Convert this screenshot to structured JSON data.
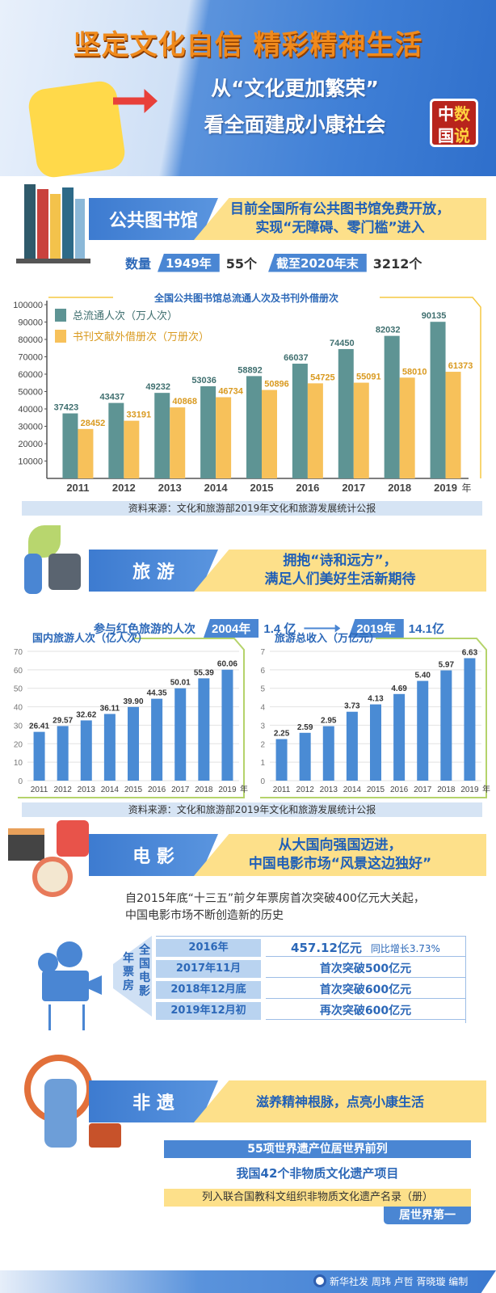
{
  "header": {
    "title": "坚定文化自信 精彩精神生活",
    "subtitle_line1": "从“文化更加繁荣”",
    "subtitle_line2": "看全面建成小康社会",
    "seal": [
      "中",
      "数",
      "国",
      "说"
    ]
  },
  "library": {
    "label": "公共图书馆",
    "headline1": "目前全国所有公共图书馆免费开放，",
    "headline2": "实现“无障碍、零门槛”进入",
    "stats": {
      "label": "数量",
      "year1": "1949年",
      "value1": "55个",
      "year2": "截至2020年末",
      "value2": "3212个"
    },
    "source": "资料来源：文化和旅游部2019年文化和旅游发展统计公报"
  },
  "tourism": {
    "label": "旅 游",
    "headline1": "拥抱“诗和远方”，",
    "headline2": "满足人们美好生活新期待",
    "red": {
      "label": "参与红色旅游的人次",
      "year1": "2004年",
      "value1": "1.4 亿",
      "year2": "2019年",
      "value2": "14.1亿"
    },
    "source": "资料来源：文化和旅游部2019年文化和旅游发展统计公报"
  },
  "movie": {
    "label": "电 影",
    "headline1": "从大国向强国迈进，",
    "headline2": "中国电影市场“风景这边独好”",
    "intro1": "自2015年底“十三五”前夕年票房首次突破400亿元大关起，",
    "intro2": "中国电影市场不断创造新的历史",
    "side_label1": "全国电影",
    "side_label2": "年票房",
    "rows": [
      {
        "date": "2016年",
        "value": "457.12亿元",
        "note": "同比增长3.73%"
      },
      {
        "date": "2017年11月",
        "value": "首次突破500亿元",
        "note": ""
      },
      {
        "date": "2018年12月底",
        "value": "首次突破600亿元",
        "note": ""
      },
      {
        "date": "2019年12月初",
        "value": "再次突破600亿元",
        "note": ""
      }
    ]
  },
  "heritage": {
    "label": "非 遗",
    "headline": "滋养精神根脉，点亮小康生活",
    "line1": "55项世界遗产位居世界前列",
    "line2": "我国42个非物质文化遗产项目",
    "line3": "列入联合国教科文组织非物质文化遗产名录（册）",
    "line4": "居世界第一"
  },
  "footer": {
    "credit": "新华社发 周玮 卢哲 胥晓璇 编制"
  },
  "colors": {
    "blue": "#4a86d3",
    "teal": "#5e9494",
    "yellow": "#f7c15a",
    "green_frame": "#b5d36b",
    "header_orange": "#f08a1c"
  },
  "chart_data": [
    {
      "type": "bar",
      "title": "全国公共图书馆总流通人次及书刊外借册次",
      "categories": [
        "2011",
        "2012",
        "2013",
        "2014",
        "2015",
        "2016",
        "2017",
        "2018",
        "2019"
      ],
      "x_unit": "年",
      "series": [
        {
          "name": "总流通人次（万人次）",
          "color": "#5e9494",
          "values": [
            37423,
            43437,
            49232,
            53036,
            58892,
            66037,
            74450,
            82032,
            90135
          ]
        },
        {
          "name": "书刊文献外借册次（万册次）",
          "color": "#f7c15a",
          "values": [
            28452,
            33191,
            40868,
            46734,
            50896,
            54725,
            55091,
            58010,
            61373
          ]
        }
      ],
      "yticks": [
        10000,
        20000,
        30000,
        40000,
        50000,
        60000,
        70000,
        80000,
        90000,
        100000
      ],
      "ylim": [
        0,
        100000
      ],
      "legend": "top-left"
    },
    {
      "type": "bar",
      "title": "国内旅游人次（亿人次）",
      "categories": [
        "2011",
        "2012",
        "2013",
        "2014",
        "2015",
        "2016",
        "2017",
        "2018",
        "2019"
      ],
      "x_unit": "年",
      "values": [
        26.41,
        29.57,
        32.62,
        36.11,
        39.9,
        44.35,
        50.01,
        55.39,
        60.06
      ],
      "labels": [
        "26.41",
        "29.57",
        "32.62",
        "36.11",
        "39.90",
        "44.35",
        "50.01",
        "55.39",
        "60.06"
      ],
      "yticks": [
        0,
        10,
        20,
        30,
        40,
        50,
        60,
        70
      ],
      "ylim": [
        0,
        70
      ],
      "grid": true
    },
    {
      "type": "bar",
      "title": "旅游总收入（万亿元）",
      "categories": [
        "2011",
        "2012",
        "2013",
        "2014",
        "2015",
        "2016",
        "2017",
        "2018",
        "2019"
      ],
      "x_unit": "年",
      "values": [
        2.25,
        2.59,
        2.95,
        3.73,
        4.13,
        4.69,
        5.4,
        5.97,
        6.63
      ],
      "labels": [
        "2.25",
        "2.59",
        "2.95",
        "3.73",
        "4.13",
        "4.69",
        "5.40",
        "5.97",
        "6.63"
      ],
      "yticks": [
        0,
        1,
        2,
        3,
        4,
        5,
        6,
        7
      ],
      "ylim": [
        0,
        7
      ],
      "grid": true
    }
  ]
}
